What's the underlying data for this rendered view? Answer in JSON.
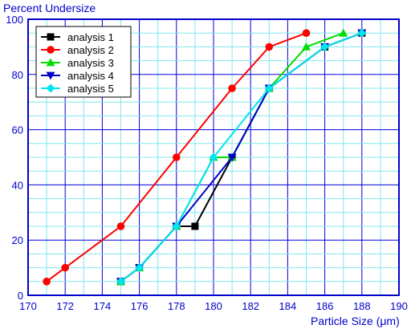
{
  "chart_data": {
    "type": "line",
    "xlabel": "Particle Size (μm)",
    "ylabel": "Percent Undersize",
    "xlim": [
      170,
      190
    ],
    "ylim": [
      0,
      100
    ],
    "x_ticks": [
      170,
      172,
      174,
      176,
      178,
      180,
      182,
      184,
      186,
      188,
      190
    ],
    "y_ticks": [
      0,
      20,
      40,
      60,
      80,
      100
    ],
    "x_minor_step": 1,
    "y_minor_step": 5,
    "grid": true,
    "legend_position": "top-left",
    "series": [
      {
        "name": "analysis 1",
        "color": "#000000",
        "marker": "square",
        "x": [
          175,
          176,
          178,
          179,
          181,
          183,
          186,
          188
        ],
        "y": [
          5,
          10,
          25,
          25,
          50,
          75,
          90,
          95
        ]
      },
      {
        "name": "analysis 2",
        "color": "#ff0000",
        "marker": "circle",
        "x": [
          171,
          172,
          175,
          178,
          181,
          183,
          185
        ],
        "y": [
          5,
          10,
          25,
          50,
          75,
          90,
          95
        ]
      },
      {
        "name": "analysis 3",
        "color": "#00dd00",
        "marker": "triangle-up",
        "x": [
          175,
          176,
          178,
          180,
          181,
          183,
          185,
          187
        ],
        "y": [
          5,
          10,
          25,
          50,
          50,
          75,
          90,
          95
        ]
      },
      {
        "name": "analysis 4",
        "color": "#0000cc",
        "marker": "triangle-down",
        "x": [
          175,
          176,
          178,
          181,
          183,
          186,
          188
        ],
        "y": [
          5,
          10,
          25,
          50,
          75,
          90,
          95
        ]
      },
      {
        "name": "analysis 5",
        "color": "#00e5ee",
        "marker": "diamond",
        "x": [
          175,
          176,
          178,
          180,
          183,
          186,
          188
        ],
        "y": [
          5,
          10,
          25,
          50,
          75,
          90,
          95
        ]
      }
    ]
  }
}
